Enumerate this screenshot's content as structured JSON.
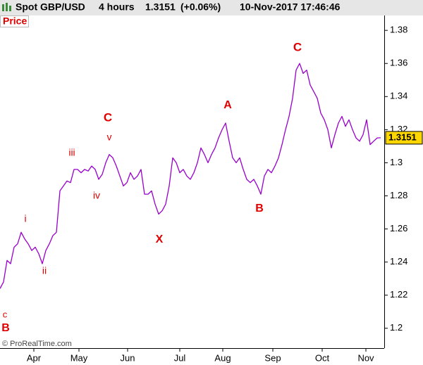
{
  "chart_data": {
    "type": "line",
    "title": "Spot GBP/USD",
    "timeframe": "4 hours",
    "last_price": 1.3151,
    "change": "(+0.06%)",
    "timestamp": "10-Nov-2017 17:46:46",
    "panel_label": "Price",
    "credit": "© ProRealTime.com",
    "color": "#9900cc",
    "values": [
      1.224,
      1.228,
      1.241,
      1.239,
      1.249,
      1.251,
      1.258,
      1.254,
      1.251,
      1.247,
      1.249,
      1.245,
      1.239,
      1.247,
      1.251,
      1.256,
      1.258,
      1.283,
      1.286,
      1.289,
      1.288,
      1.296,
      1.296,
      1.294,
      1.296,
      1.295,
      1.298,
      1.296,
      1.29,
      1.293,
      1.3,
      1.305,
      1.303,
      1.298,
      1.292,
      1.286,
      1.288,
      1.294,
      1.29,
      1.292,
      1.296,
      1.281,
      1.281,
      1.283,
      1.275,
      1.269,
      1.271,
      1.275,
      1.286,
      1.303,
      1.3,
      1.294,
      1.296,
      1.292,
      1.29,
      1.294,
      1.3,
      1.309,
      1.305,
      1.3,
      1.305,
      1.309,
      1.315,
      1.32,
      1.324,
      1.313,
      1.303,
      1.3,
      1.303,
      1.296,
      1.29,
      1.288,
      1.29,
      1.286,
      1.281,
      1.292,
      1.296,
      1.294,
      1.298,
      1.303,
      1.311,
      1.32,
      1.328,
      1.339,
      1.356,
      1.36,
      1.354,
      1.356,
      1.347,
      1.343,
      1.339,
      1.33,
      1.326,
      1.32,
      1.309,
      1.317,
      1.324,
      1.328,
      1.322,
      1.326,
      1.32,
      1.315,
      1.313,
      1.317,
      1.326,
      1.311,
      1.313,
      1.315,
      1.3151
    ],
    "xlim": [
      0,
      109
    ],
    "xticks": [
      {
        "value": 9.6,
        "label": "Apr"
      },
      {
        "value": 22.4,
        "label": "May"
      },
      {
        "value": 36.2,
        "label": "Jun"
      },
      {
        "value": 51,
        "label": "Jul"
      },
      {
        "value": 63.2,
        "label": "Aug"
      },
      {
        "value": 77.4,
        "label": "Sep"
      },
      {
        "value": 91.4,
        "label": "Oct"
      },
      {
        "value": 103.8,
        "label": "Nov"
      }
    ],
    "ylim": [
      1.188,
      1.389
    ],
    "yticks": [
      1.2,
      1.22,
      1.24,
      1.26,
      1.28,
      1.3,
      1.32,
      1.34,
      1.36,
      1.38
    ],
    "annotations": [
      "c",
      "B",
      "i",
      "ii",
      "iii",
      "iv",
      "v",
      "C",
      "X",
      "A",
      "B",
      "C"
    ]
  }
}
